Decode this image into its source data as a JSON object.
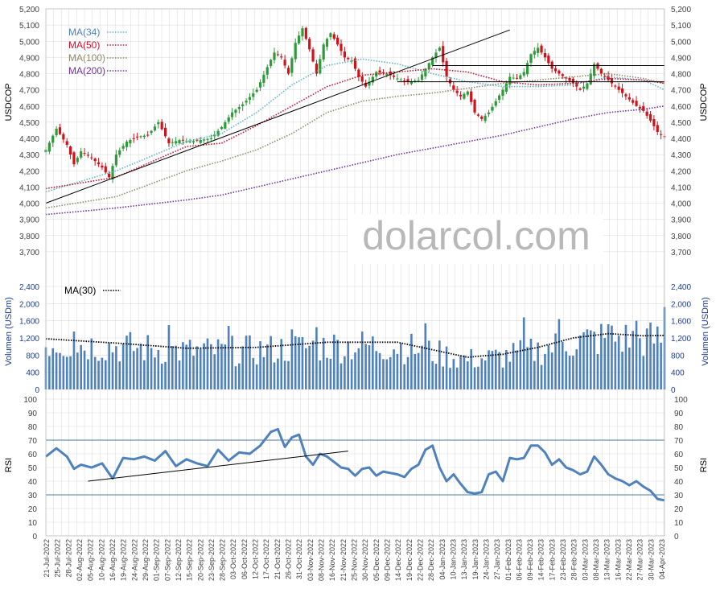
{
  "watermark": "dolarcol.com",
  "colors": {
    "up": "#2e9a3a",
    "down": "#d0121b",
    "ma34": "#5fb6cc",
    "ma50": "#c8102e",
    "ma100": "#8f8a6a",
    "ma200": "#7030a0",
    "volume": "#4f81bd",
    "volma": "#000000",
    "rsi": "#4f81bd",
    "grid": "#d9d9d9"
  },
  "chart_data": [
    {
      "type": "candlestick",
      "ylabel": "USDCOP",
      "ylim": [
        3600,
        5200
      ],
      "yticks": [
        "3,700",
        "3,800",
        "3,900",
        "4,000",
        "4,100",
        "4,200",
        "4,300",
        "4,400",
        "4,500",
        "4,600",
        "4,700",
        "4,800",
        "4,900",
        "5,000",
        "5,100",
        "5,200"
      ],
      "legend": [
        "MA(34)",
        "MA(50)",
        "MA(100)",
        "MA(200)"
      ],
      "price_anchors": [
        [
          0,
          4330
        ],
        [
          3,
          4460
        ],
        [
          6,
          4360
        ],
        [
          8,
          4240
        ],
        [
          10,
          4320
        ],
        [
          13,
          4280
        ],
        [
          16,
          4220
        ],
        [
          18,
          4160
        ],
        [
          20,
          4300
        ],
        [
          23,
          4380
        ],
        [
          26,
          4410
        ],
        [
          29,
          4420
        ],
        [
          32,
          4500
        ],
        [
          35,
          4370
        ],
        [
          38,
          4390
        ],
        [
          41,
          4380
        ],
        [
          44,
          4390
        ],
        [
          47,
          4400
        ],
        [
          50,
          4470
        ],
        [
          53,
          4560
        ],
        [
          56,
          4610
        ],
        [
          60,
          4700
        ],
        [
          63,
          4840
        ],
        [
          65,
          4930
        ],
        [
          67,
          4900
        ],
        [
          69,
          4800
        ],
        [
          71,
          4990
        ],
        [
          73,
          5080
        ],
        [
          75,
          4950
        ],
        [
          77,
          4800
        ],
        [
          79,
          4980
        ],
        [
          81,
          5050
        ],
        [
          83,
          4980
        ],
        [
          85,
          4900
        ],
        [
          87,
          4880
        ],
        [
          89,
          4780
        ],
        [
          91,
          4720
        ],
        [
          94,
          4810
        ],
        [
          97,
          4800
        ],
        [
          100,
          4770
        ],
        [
          103,
          4750
        ],
        [
          106,
          4760
        ],
        [
          108,
          4830
        ],
        [
          110,
          4900
        ],
        [
          112,
          4960
        ],
        [
          114,
          4780
        ],
        [
          116,
          4700
        ],
        [
          118,
          4660
        ],
        [
          120,
          4690
        ],
        [
          122,
          4560
        ],
        [
          124,
          4520
        ],
        [
          126,
          4560
        ],
        [
          128,
          4630
        ],
        [
          130,
          4700
        ],
        [
          132,
          4780
        ],
        [
          134,
          4770
        ],
        [
          136,
          4810
        ],
        [
          138,
          4920
        ],
        [
          140,
          4960
        ],
        [
          142,
          4900
        ],
        [
          144,
          4830
        ],
        [
          146,
          4800
        ],
        [
          148,
          4770
        ],
        [
          150,
          4740
        ],
        [
          152,
          4700
        ],
        [
          154,
          4740
        ],
        [
          156,
          4860
        ],
        [
          158,
          4800
        ],
        [
          160,
          4760
        ],
        [
          162,
          4720
        ],
        [
          164,
          4680
        ],
        [
          166,
          4640
        ],
        [
          168,
          4600
        ],
        [
          170,
          4570
        ],
        [
          172,
          4510
        ],
        [
          174,
          4440
        ],
        [
          176,
          4410
        ]
      ],
      "ma_anchors": {
        "ma34": [
          [
            0,
            4070
          ],
          [
            20,
            4200
          ],
          [
            40,
            4380
          ],
          [
            50,
            4430
          ],
          [
            60,
            4560
          ],
          [
            70,
            4730
          ],
          [
            80,
            4850
          ],
          [
            90,
            4890
          ],
          [
            100,
            4860
          ],
          [
            110,
            4800
          ],
          [
            120,
            4750
          ],
          [
            130,
            4720
          ],
          [
            140,
            4720
          ],
          [
            150,
            4730
          ],
          [
            160,
            4780
          ],
          [
            170,
            4760
          ],
          [
            176,
            4700
          ]
        ],
        "ma50": [
          [
            0,
            4090
          ],
          [
            20,
            4160
          ],
          [
            40,
            4350
          ],
          [
            50,
            4370
          ],
          [
            60,
            4480
          ],
          [
            70,
            4600
          ],
          [
            80,
            4720
          ],
          [
            90,
            4790
          ],
          [
            100,
            4810
          ],
          [
            110,
            4830
          ],
          [
            120,
            4810
          ],
          [
            130,
            4750
          ],
          [
            140,
            4730
          ],
          [
            150,
            4740
          ],
          [
            160,
            4770
          ],
          [
            170,
            4760
          ],
          [
            176,
            4740
          ]
        ],
        "ma100": [
          [
            0,
            3970
          ],
          [
            20,
            4040
          ],
          [
            40,
            4200
          ],
          [
            50,
            4260
          ],
          [
            60,
            4330
          ],
          [
            70,
            4430
          ],
          [
            80,
            4560
          ],
          [
            90,
            4630
          ],
          [
            100,
            4660
          ],
          [
            110,
            4680
          ],
          [
            120,
            4710
          ],
          [
            130,
            4740
          ],
          [
            140,
            4760
          ],
          [
            150,
            4780
          ],
          [
            160,
            4800
          ],
          [
            170,
            4770
          ],
          [
            176,
            4740
          ]
        ],
        "ma200": [
          [
            0,
            3930
          ],
          [
            20,
            3970
          ],
          [
            40,
            4020
          ],
          [
            50,
            4050
          ],
          [
            60,
            4100
          ],
          [
            70,
            4150
          ],
          [
            80,
            4200
          ],
          [
            90,
            4250
          ],
          [
            100,
            4300
          ],
          [
            110,
            4340
          ],
          [
            120,
            4380
          ],
          [
            130,
            4420
          ],
          [
            140,
            4470
          ],
          [
            150,
            4520
          ],
          [
            160,
            4560
          ],
          [
            170,
            4580
          ],
          [
            176,
            4600
          ]
        ]
      },
      "trendlines": [
        [
          [
            0,
            4000
          ],
          [
            132,
            5070
          ]
        ],
        [
          [
            110,
            4850
          ],
          [
            176,
            4850
          ]
        ],
        [
          [
            100,
            4750
          ],
          [
            176,
            4750
          ]
        ]
      ]
    },
    {
      "type": "bar",
      "ylabel": "Volumen (USDm)",
      "ylim": [
        0,
        2400
      ],
      "yticks": [
        "0",
        "400",
        "800",
        "1,200",
        "1,600",
        "2,000",
        "2,400"
      ],
      "legend": [
        "MA(30)"
      ],
      "volma_anchors": [
        [
          0,
          1180
        ],
        [
          20,
          1080
        ],
        [
          40,
          960
        ],
        [
          60,
          980
        ],
        [
          80,
          1100
        ],
        [
          100,
          1100
        ],
        [
          120,
          750
        ],
        [
          130,
          820
        ],
        [
          140,
          980
        ],
        [
          150,
          1200
        ],
        [
          160,
          1300
        ],
        [
          170,
          1250
        ],
        [
          176,
          1260
        ]
      ],
      "spikes": [
        [
          8,
          1350
        ],
        [
          35,
          1500
        ],
        [
          52,
          1480
        ],
        [
          70,
          1400
        ],
        [
          77,
          1450
        ],
        [
          108,
          1540
        ],
        [
          136,
          1680
        ],
        [
          146,
          1640
        ],
        [
          160,
          1520
        ],
        [
          168,
          1600
        ],
        [
          176,
          1920
        ]
      ]
    },
    {
      "type": "line",
      "ylabel": "RSI",
      "ylim": [
        0,
        100
      ],
      "yticks": [
        "0",
        "10",
        "20",
        "30",
        "40",
        "50",
        "60",
        "70",
        "80",
        "90",
        "100"
      ],
      "levels": [
        70,
        30
      ],
      "rsi_anchors": [
        [
          0,
          58
        ],
        [
          3,
          64
        ],
        [
          6,
          58
        ],
        [
          8,
          49
        ],
        [
          10,
          52
        ],
        [
          13,
          50
        ],
        [
          16,
          53
        ],
        [
          19,
          42
        ],
        [
          22,
          57
        ],
        [
          25,
          56
        ],
        [
          28,
          58
        ],
        [
          31,
          55
        ],
        [
          34,
          62
        ],
        [
          37,
          51
        ],
        [
          40,
          56
        ],
        [
          43,
          53
        ],
        [
          46,
          51
        ],
        [
          49,
          63
        ],
        [
          52,
          55
        ],
        [
          55,
          61
        ],
        [
          58,
          60
        ],
        [
          61,
          66
        ],
        [
          64,
          76
        ],
        [
          66,
          78
        ],
        [
          68,
          65
        ],
        [
          70,
          72
        ],
        [
          72,
          74
        ],
        [
          74,
          58
        ],
        [
          76,
          52
        ],
        [
          78,
          60
        ],
        [
          80,
          58
        ],
        [
          82,
          54
        ],
        [
          84,
          50
        ],
        [
          86,
          49
        ],
        [
          88,
          44
        ],
        [
          90,
          49
        ],
        [
          92,
          50
        ],
        [
          94,
          44
        ],
        [
          96,
          47
        ],
        [
          98,
          46
        ],
        [
          100,
          45
        ],
        [
          102,
          43
        ],
        [
          104,
          49
        ],
        [
          106,
          52
        ],
        [
          108,
          63
        ],
        [
          110,
          66
        ],
        [
          112,
          50
        ],
        [
          114,
          40
        ],
        [
          116,
          45
        ],
        [
          118,
          38
        ],
        [
          120,
          32
        ],
        [
          122,
          31
        ],
        [
          124,
          32
        ],
        [
          126,
          45
        ],
        [
          128,
          47
        ],
        [
          130,
          40
        ],
        [
          132,
          57
        ],
        [
          134,
          56
        ],
        [
          136,
          57
        ],
        [
          138,
          66
        ],
        [
          140,
          66
        ],
        [
          142,
          61
        ],
        [
          144,
          52
        ],
        [
          146,
          56
        ],
        [
          148,
          50
        ],
        [
          150,
          48
        ],
        [
          152,
          45
        ],
        [
          154,
          47
        ],
        [
          156,
          58
        ],
        [
          158,
          52
        ],
        [
          160,
          45
        ],
        [
          162,
          42
        ],
        [
          164,
          40
        ],
        [
          166,
          37
        ],
        [
          168,
          40
        ],
        [
          170,
          36
        ],
        [
          172,
          33
        ],
        [
          174,
          27
        ],
        [
          176,
          26
        ]
      ],
      "trendlines": [
        [
          [
            12,
            40
          ],
          [
            86,
            62
          ]
        ]
      ]
    }
  ],
  "xlabels": [
    "21-Jul-2022",
    "25-Jul-2022",
    "28-Jul-2022",
    "02-Aug-2022",
    "05-Aug-2022",
    "10-Aug-2022",
    "16-Aug-2022",
    "19-Aug-2022",
    "24-Aug-2022",
    "29-Aug-2022",
    "01-Sep-2022",
    "07-Sep-2022",
    "12-Sep-2022",
    "15-Sep-2022",
    "20-Sep-2022",
    "23-Sep-2022",
    "28-Sep-2022",
    "03-Oct-2022",
    "06-Oct-2022",
    "12-Oct-2022",
    "17-Oct-2022",
    "21-Oct-2022",
    "26-Oct-2022",
    "31-Oct-2022",
    "03-Nov-2022",
    "08-Nov-2022",
    "16-Nov-2022",
    "21-Nov-2022",
    "25-Nov-2022",
    "30-Nov-2022",
    "05-Dec-2022",
    "09-Dec-2022",
    "14-Dec-2022",
    "19-Dec-2022",
    "22-Dec-2022",
    "28-Dec-2022",
    "04-Jan-2023",
    "10-Jan-2023",
    "13-Jan-2023",
    "19-Jan-2023",
    "24-Jan-2023",
    "27-Jan-2023",
    "01-Feb-2023",
    "06-Feb-2023",
    "09-Feb-2023",
    "14-Feb-2023",
    "17-Feb-2023",
    "23-Feb-2023",
    "28-Feb-2023",
    "03-Mar-2023",
    "08-Mar-2023",
    "13-Mar-2023",
    "16-Mar-2023",
    "22-Mar-2023",
    "27-Mar-2023",
    "30-Mar-2023",
    "04-Apr-2023"
  ]
}
